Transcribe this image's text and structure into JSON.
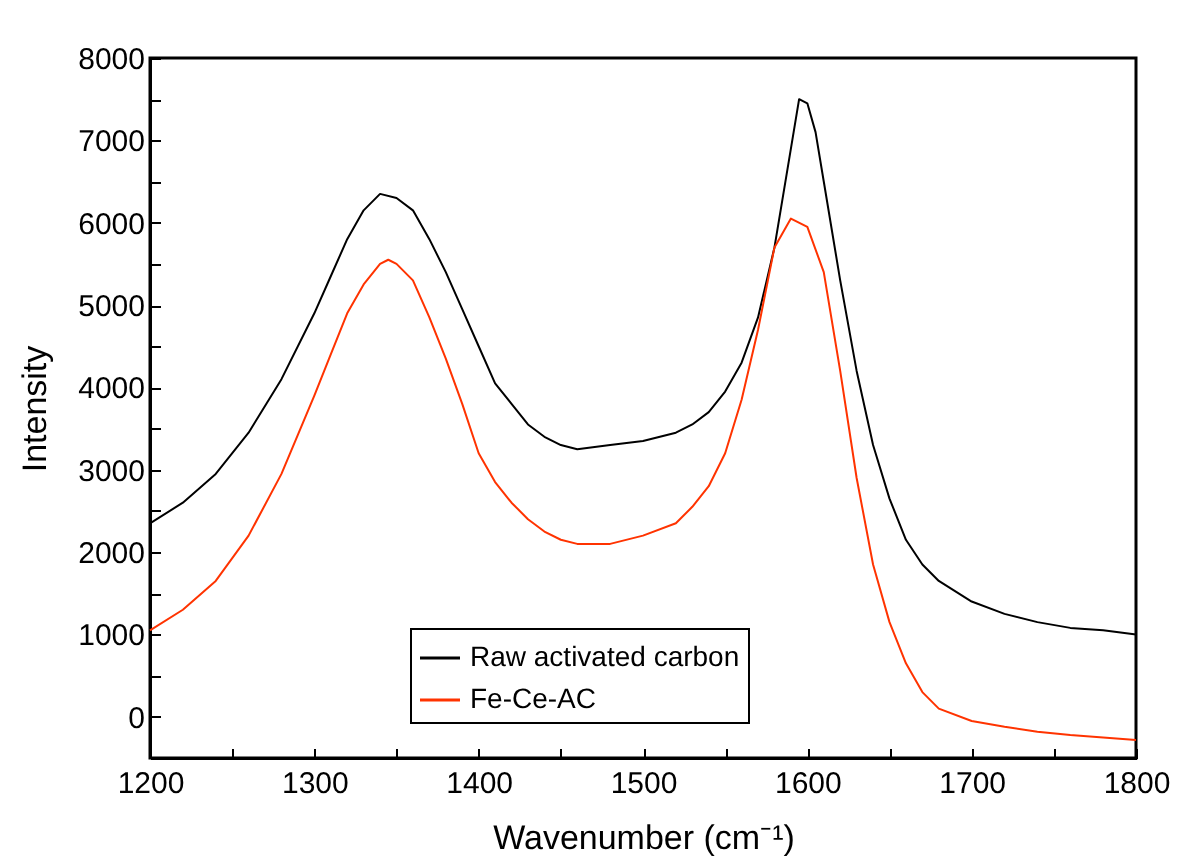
{
  "chart_data": {
    "type": "line",
    "xlabel": "Wavenumber (cm⁻¹)",
    "ylabel": "Intensity",
    "xlim": [
      1200,
      1800
    ],
    "ylim": [
      -500,
      8000
    ],
    "xticks": [
      1200,
      {
        "value": 1250,
        "label": null
      },
      1300,
      {
        "value": 1350,
        "label": null
      },
      1400,
      {
        "value": 1450,
        "label": null
      },
      1500,
      {
        "value": 1550,
        "label": null
      },
      1600,
      {
        "value": 1650,
        "label": null
      },
      1700,
      {
        "value": 1750,
        "label": null
      },
      1800
    ],
    "yticks": [
      {
        "value": -500,
        "label": null
      },
      0,
      {
        "value": 500,
        "label": null
      },
      1000,
      {
        "value": 1500,
        "label": null
      },
      2000,
      {
        "value": 2500,
        "label": null
      },
      3000,
      {
        "value": 3500,
        "label": null
      },
      4000,
      {
        "value": 4500,
        "label": null
      },
      5000,
      {
        "value": 5500,
        "label": null
      },
      6000,
      {
        "value": 6500,
        "label": null
      },
      7000,
      {
        "value": 7500,
        "label": null
      },
      8000
    ],
    "legend": "bottom left",
    "grid": false,
    "marker": "none",
    "line_style": "solid",
    "series": [
      {
        "name": "Raw activated carbon",
        "color": "#000000",
        "x": [
          1200,
          1220,
          1240,
          1260,
          1280,
          1300,
          1310,
          1320,
          1330,
          1340,
          1350,
          1360,
          1370,
          1380,
          1390,
          1400,
          1410,
          1420,
          1430,
          1440,
          1450,
          1460,
          1480,
          1500,
          1520,
          1530,
          1540,
          1550,
          1560,
          1570,
          1580,
          1590,
          1595,
          1600,
          1605,
          1610,
          1620,
          1630,
          1640,
          1650,
          1660,
          1670,
          1680,
          1700,
          1720,
          1740,
          1760,
          1780,
          1800
        ],
        "values": [
          2350,
          2600,
          2950,
          3450,
          4100,
          4900,
          5350,
          5800,
          6150,
          6350,
          6300,
          6150,
          5800,
          5400,
          4950,
          4500,
          4050,
          3800,
          3550,
          3400,
          3300,
          3250,
          3300,
          3350,
          3450,
          3550,
          3700,
          3950,
          4300,
          4850,
          5700,
          6900,
          7500,
          7450,
          7100,
          6500,
          5300,
          4200,
          3300,
          2650,
          2150,
          1850,
          1650,
          1400,
          1250,
          1150,
          1080,
          1050,
          1000
        ]
      },
      {
        "name": "Fe-Ce-AC",
        "color": "#ff3300",
        "x": [
          1200,
          1220,
          1240,
          1260,
          1280,
          1300,
          1310,
          1320,
          1330,
          1340,
          1345,
          1350,
          1360,
          1370,
          1380,
          1390,
          1400,
          1410,
          1420,
          1430,
          1440,
          1450,
          1460,
          1480,
          1500,
          1520,
          1530,
          1540,
          1550,
          1560,
          1570,
          1580,
          1590,
          1600,
          1610,
          1620,
          1630,
          1640,
          1650,
          1660,
          1670,
          1680,
          1700,
          1720,
          1740,
          1760,
          1780,
          1800
        ],
        "values": [
          1050,
          1300,
          1650,
          2200,
          2950,
          3900,
          4400,
          4900,
          5250,
          5500,
          5550,
          5500,
          5300,
          4850,
          4350,
          3800,
          3200,
          2850,
          2600,
          2400,
          2250,
          2150,
          2100,
          2100,
          2200,
          2350,
          2550,
          2800,
          3200,
          3850,
          4700,
          5700,
          6050,
          5950,
          5400,
          4200,
          2900,
          1850,
          1150,
          650,
          300,
          100,
          -50,
          -120,
          -180,
          -220,
          -250,
          -280
        ]
      }
    ]
  }
}
